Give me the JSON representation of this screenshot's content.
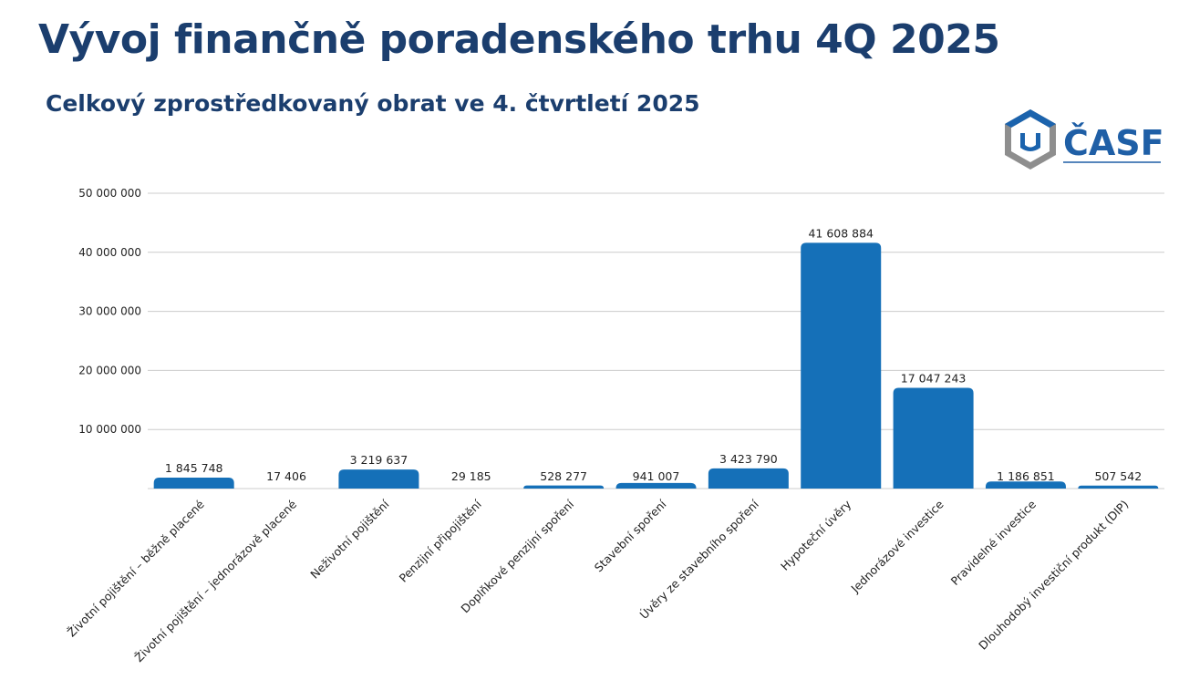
{
  "header": {
    "title": "Vývoj finančně poradenského trhu 4Q 2025",
    "subtitle": "Celkový zprostředkovaný obrat ve 4. čtvrtletí 2025"
  },
  "logo": {
    "text": "ČASF",
    "icon": "shield-hexagon-icon",
    "colors": {
      "blue": "#1b63ad",
      "grey": "#8e8e8e",
      "text": "#1f5fa6"
    }
  },
  "colors": {
    "bar": "#1570b8",
    "grid": "#cccccc",
    "title": "#1b3e6e"
  },
  "chart_data": {
    "type": "bar",
    "title": "Celkový zprostředkovaný obrat ve 4. čtvrtletí 2025",
    "xlabel": "",
    "ylabel": "",
    "ylim": [
      0,
      50000000
    ],
    "yticks": [
      10000000,
      20000000,
      30000000,
      40000000,
      50000000
    ],
    "ytick_labels": [
      "10 000 000",
      "20 000 000",
      "30 000 000",
      "40 000 000",
      "50 000 000"
    ],
    "grid": true,
    "categories": [
      "Životní pojištění – běžně placené",
      "Životní pojištění – jednorázově placené",
      "Neživotní pojištění",
      "Penzijní připojištění",
      "Doplňkové penzijní spoření",
      "Stavební spoření",
      "Úvěry ze stavebního spoření",
      "Hypoteční úvěry",
      "Jednorázové investice",
      "Pravidelné investice",
      "Dlouhodobý investiční produkt (DIP)"
    ],
    "values": [
      1845748,
      17406,
      3219637,
      29185,
      528277,
      941007,
      3423790,
      41608884,
      17047243,
      1186851,
      507542
    ],
    "value_labels": [
      "1 845 748",
      "17 406",
      "3 219 637",
      "29 185",
      "528 277",
      "941 007",
      "3 423 790",
      "41 608 884",
      "17 047 243",
      "1 186 851",
      "507 542"
    ]
  }
}
